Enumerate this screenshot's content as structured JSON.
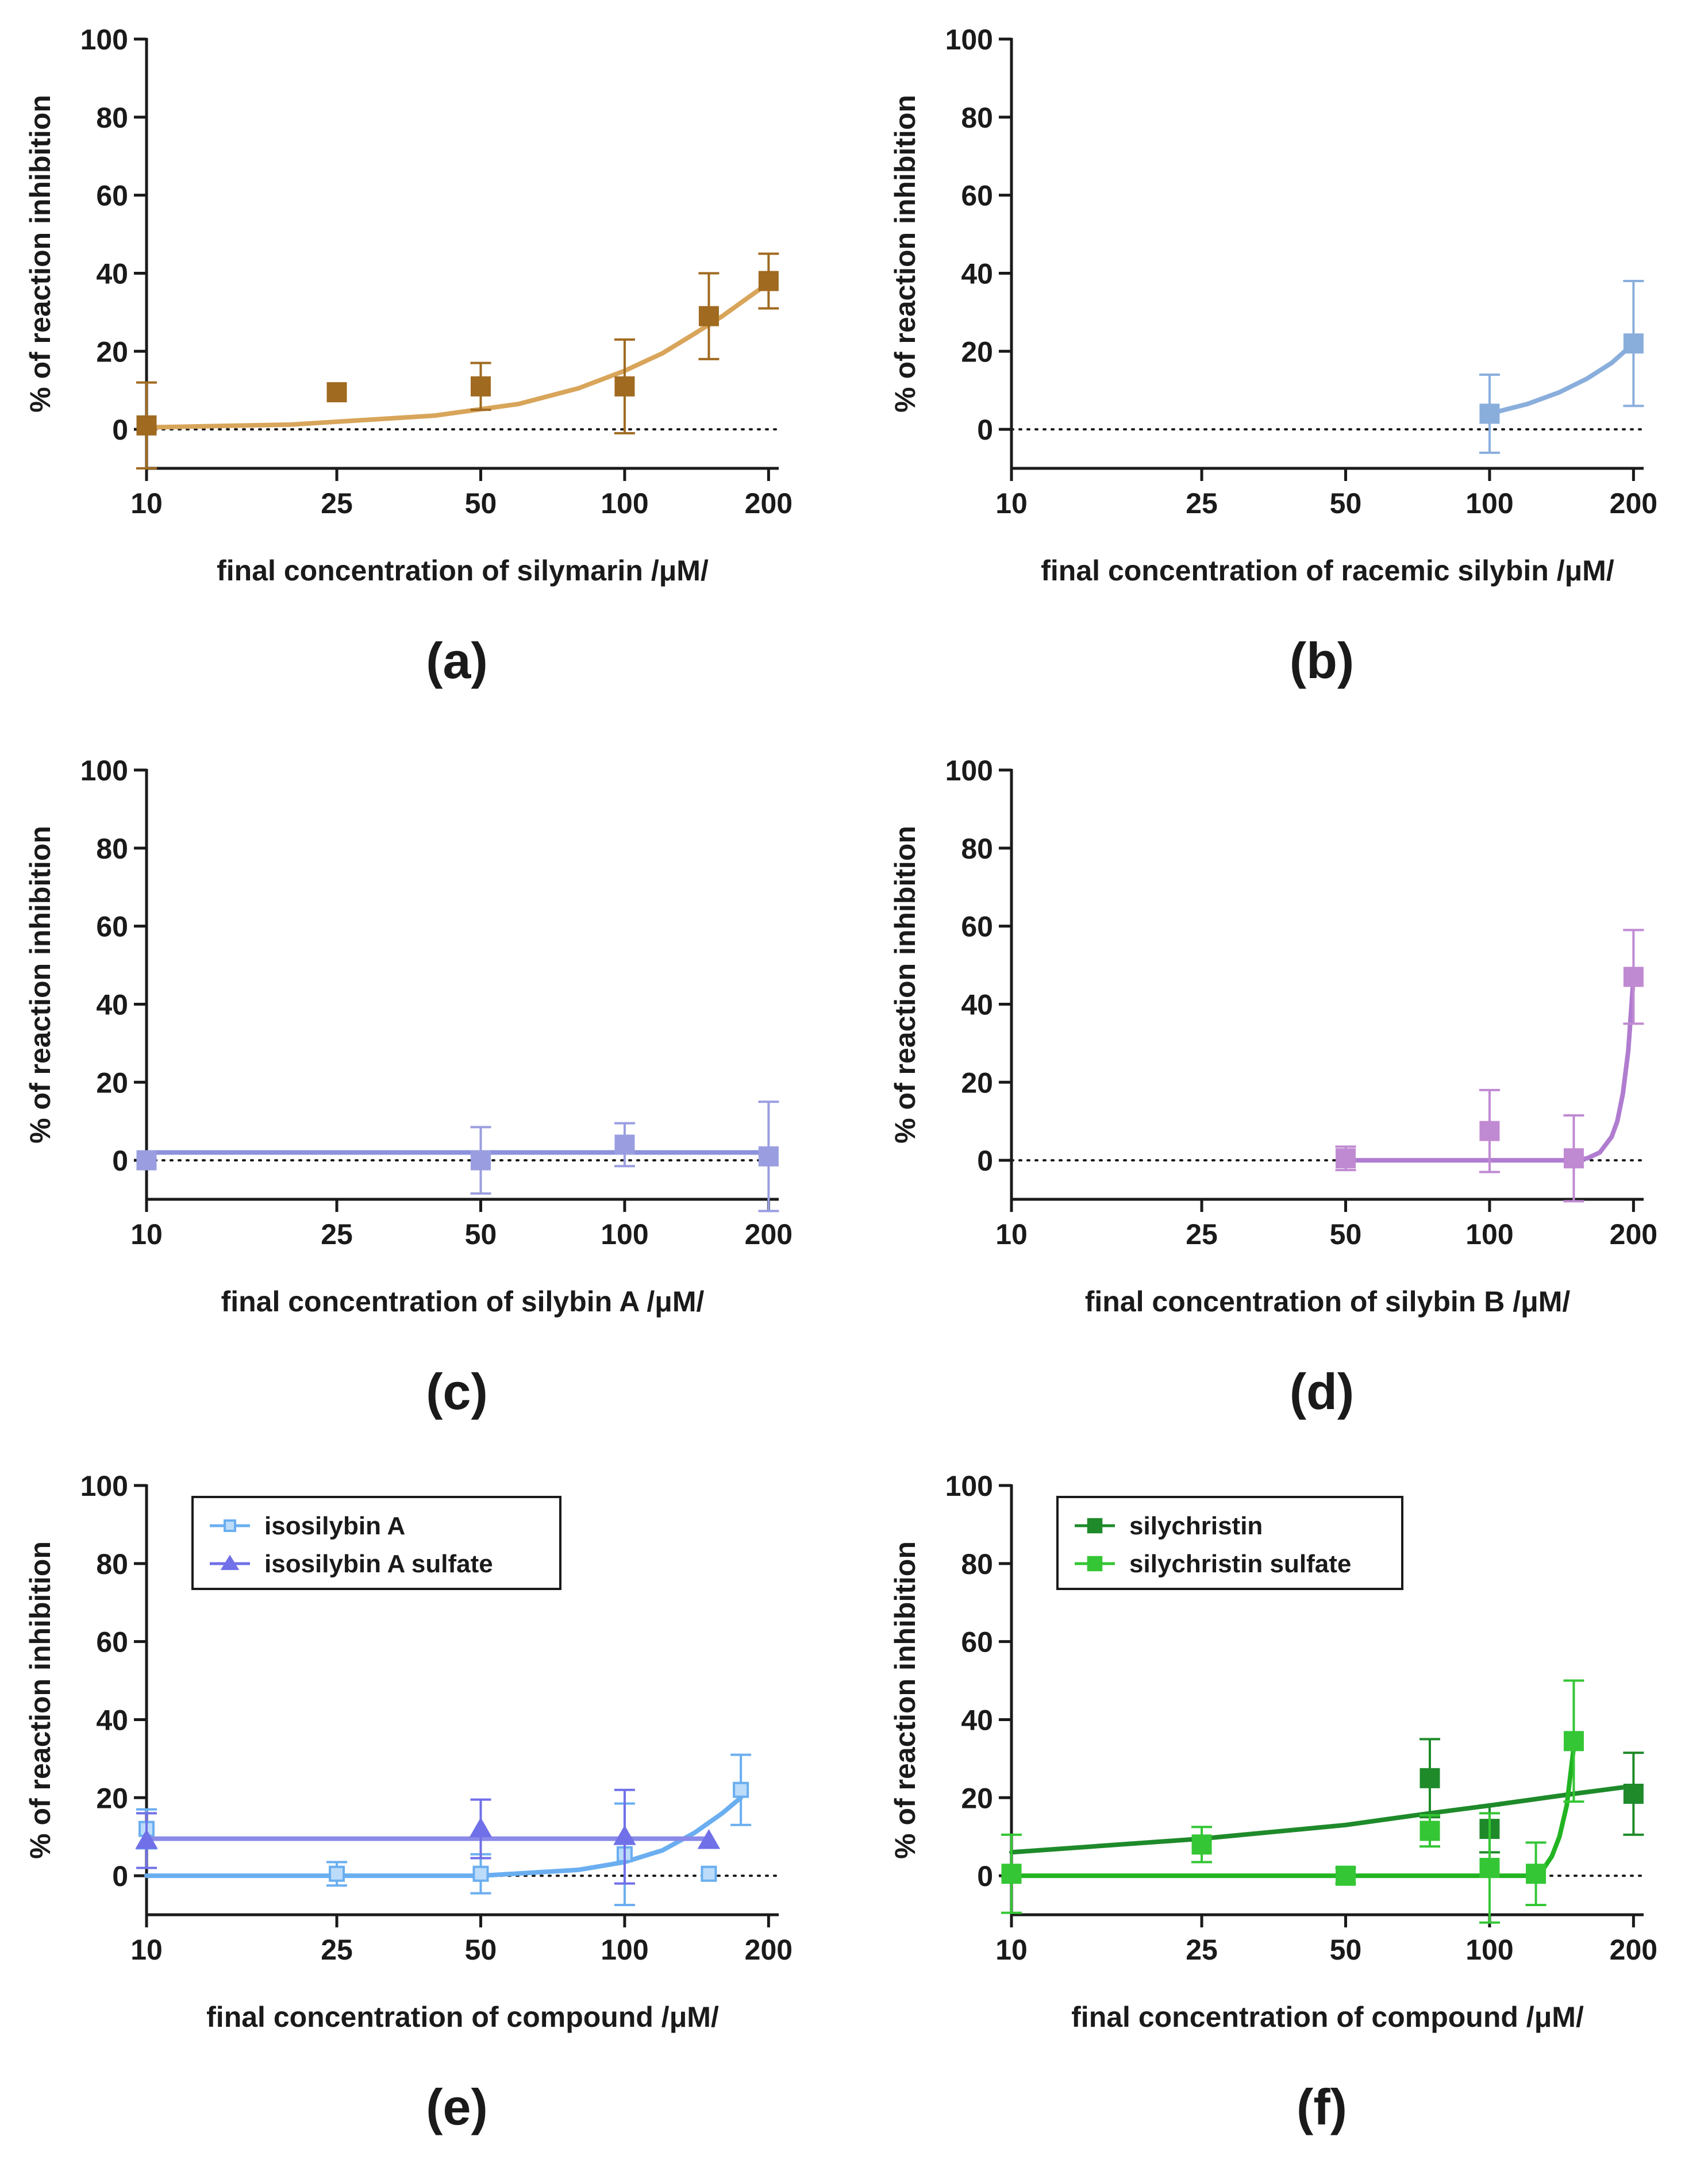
{
  "chart_data": [
    {
      "panel": "(a)",
      "type": "scatter",
      "xlabel": "final concentration of silymarin /μM/",
      "ylabel": "% of reaction inhibition",
      "x_scale": "log",
      "xlim": [
        10,
        210
      ],
      "ylim": [
        -10,
        100
      ],
      "xticks": [
        10,
        25,
        50,
        100,
        200
      ],
      "yticks": [
        0,
        20,
        40,
        60,
        80,
        100
      ],
      "tick_labels_x": [
        "10",
        "25",
        "50",
        "100",
        "200"
      ],
      "tick_labels_y": [
        "0",
        "20",
        "40",
        "60",
        "80",
        "100"
      ],
      "legend": null,
      "series": [
        {
          "name": "silymarin",
          "color": "#a06a20",
          "marker": "square",
          "points": [
            {
              "x": 10,
              "y": 1,
              "err": 11
            },
            {
              "x": 25,
              "y": 9.5,
              "err": 0
            },
            {
              "x": 50,
              "y": 11,
              "err": 6
            },
            {
              "x": 100,
              "y": 11,
              "err": 12
            },
            {
              "x": 150,
              "y": 29,
              "err": 11
            },
            {
              "x": 200,
              "y": 38,
              "err": 7
            }
          ],
          "fit": {
            "color": "#d8a55a",
            "x": [
              10,
              20,
              40,
              60,
              80,
              100,
              120,
              140,
              160,
              180,
              200
            ],
            "y": [
              0.5,
              1.2,
              3.5,
              6.5,
              10.5,
              15,
              19.5,
              24.5,
              29,
              33.5,
              37.5
            ]
          }
        }
      ]
    },
    {
      "panel": "(b)",
      "type": "scatter",
      "xlabel": "final concentration of racemic silybin /μM/",
      "ylabel": "% of reaction inhibition",
      "x_scale": "log",
      "xlim": [
        10,
        210
      ],
      "ylim": [
        -10,
        100
      ],
      "xticks": [
        10,
        25,
        50,
        100,
        200
      ],
      "yticks": [
        0,
        20,
        40,
        60,
        80,
        100
      ],
      "tick_labels_x": [
        "10",
        "25",
        "50",
        "100",
        "200"
      ],
      "tick_labels_y": [
        "0",
        "20",
        "40",
        "60",
        "80",
        "100"
      ],
      "legend": null,
      "series": [
        {
          "name": "racemic silybin",
          "color": "#8aaedc",
          "marker": "square",
          "points": [
            {
              "x": 100,
              "y": 4,
              "err": 10
            },
            {
              "x": 200,
              "y": 22,
              "err": 16
            }
          ],
          "fit": {
            "color": "#8aaedc",
            "x": [
              100,
              120,
              140,
              160,
              180,
              200
            ],
            "y": [
              4,
              6.5,
              9.5,
              13,
              17,
              22
            ]
          }
        }
      ]
    },
    {
      "panel": "(c)",
      "type": "scatter",
      "xlabel": "final concentration of silybin A /μM/",
      "ylabel": "% of reaction inhibition",
      "x_scale": "log",
      "xlim": [
        10,
        210
      ],
      "ylim": [
        -10,
        100
      ],
      "xticks": [
        10,
        25,
        50,
        100,
        200
      ],
      "yticks": [
        0,
        20,
        40,
        60,
        80,
        100
      ],
      "tick_labels_x": [
        "10",
        "25",
        "50",
        "100",
        "200"
      ],
      "tick_labels_y": [
        "0",
        "20",
        "40",
        "60",
        "80",
        "100"
      ],
      "legend": null,
      "series": [
        {
          "name": "silybin A",
          "color": "#9a9ee0",
          "marker": "square",
          "points": [
            {
              "x": 10,
              "y": 0,
              "err": 0
            },
            {
              "x": 50,
              "y": 0,
              "err": 8.5
            },
            {
              "x": 100,
              "y": 4,
              "err": 5.5
            },
            {
              "x": 200,
              "y": 1,
              "err": 14
            }
          ],
          "fit": {
            "color": "#8c92dc",
            "x": [
              10,
              200
            ],
            "y": [
              2,
              2
            ]
          }
        }
      ]
    },
    {
      "panel": "(d)",
      "type": "scatter",
      "xlabel": "final concentration of silybin B /μM/",
      "ylabel": "% of reaction inhibition",
      "x_scale": "log",
      "xlim": [
        10,
        210
      ],
      "ylim": [
        -10,
        100
      ],
      "xticks": [
        10,
        25,
        50,
        100,
        200
      ],
      "yticks": [
        0,
        20,
        40,
        60,
        80,
        100
      ],
      "tick_labels_x": [
        "10",
        "25",
        "50",
        "100",
        "200"
      ],
      "tick_labels_y": [
        "0",
        "20",
        "40",
        "60",
        "80",
        "100"
      ],
      "legend": null,
      "series": [
        {
          "name": "silybin B",
          "color": "#c08ad2",
          "marker": "square",
          "points": [
            {
              "x": 50,
              "y": 0.5,
              "err": 3
            },
            {
              "x": 100,
              "y": 7.5,
              "err": 10.5
            },
            {
              "x": 150,
              "y": 0.5,
              "err": 11
            },
            {
              "x": 200,
              "y": 47,
              "err": 12
            }
          ],
          "fit": {
            "color": "#b07cd0",
            "x": [
              50,
              150,
              160,
              170,
              180,
              185,
              190,
              195,
              200
            ],
            "y": [
              0,
              0,
              0.5,
              2,
              6,
              10,
              17,
              28,
              47
            ]
          }
        }
      ]
    },
    {
      "panel": "(e)",
      "type": "scatter",
      "xlabel": "final concentration of compound /μM/",
      "ylabel": "% of reaction inhibition",
      "x_scale": "log",
      "xlim": [
        10,
        210
      ],
      "ylim": [
        -10,
        100
      ],
      "xticks": [
        10,
        25,
        50,
        100,
        200
      ],
      "yticks": [
        0,
        20,
        40,
        60,
        80,
        100
      ],
      "tick_labels_x": [
        "10",
        "25",
        "50",
        "100",
        "200"
      ],
      "tick_labels_y": [
        "0",
        "20",
        "40",
        "60",
        "80",
        "100"
      ],
      "legend": {
        "position": "top-left",
        "entries": [
          "isosilybin A",
          "isosilybin A sulfate"
        ]
      },
      "series": [
        {
          "name": "isosilybin A",
          "color": "#6aaef0",
          "marker": "open-square",
          "points": [
            {
              "x": 10,
              "y": 12,
              "err": 5
            },
            {
              "x": 25,
              "y": 0.5,
              "err": 3
            },
            {
              "x": 50,
              "y": 0.5,
              "err": 5
            },
            {
              "x": 100,
              "y": 5.5,
              "err": 13
            },
            {
              "x": 150,
              "y": 0.5,
              "err": 0
            },
            {
              "x": 175,
              "y": 22,
              "err": 9
            }
          ],
          "fit": {
            "color": "#6aaef0",
            "x": [
              10,
              50,
              80,
              100,
              120,
              140,
              160,
              175
            ],
            "y": [
              0,
              0,
              1.5,
              3.5,
              6.5,
              11,
              16,
              20
            ]
          }
        },
        {
          "name": "isosilybin A sulfate",
          "color": "#7070e8",
          "marker": "triangle",
          "points": [
            {
              "x": 10,
              "y": 9,
              "err": 7
            },
            {
              "x": 50,
              "y": 12,
              "err": 7.5
            },
            {
              "x": 100,
              "y": 10,
              "err": 12
            },
            {
              "x": 150,
              "y": 9,
              "err": 0
            }
          ],
          "fit": {
            "color": "#8a8ae8",
            "x": [
              10,
              150
            ],
            "y": [
              9.5,
              9.5
            ]
          }
        }
      ]
    },
    {
      "panel": "(f)",
      "type": "scatter",
      "xlabel": "final concentration of compound /μM/",
      "ylabel": "% of reaction inhibition",
      "x_scale": "log",
      "xlim": [
        10,
        210
      ],
      "ylim": [
        -10,
        100
      ],
      "xticks": [
        10,
        25,
        50,
        100,
        200
      ],
      "yticks": [
        0,
        20,
        40,
        60,
        80,
        100
      ],
      "tick_labels_x": [
        "10",
        "25",
        "50",
        "100",
        "200"
      ],
      "tick_labels_y": [
        "0",
        "20",
        "40",
        "60",
        "80",
        "100"
      ],
      "legend": {
        "position": "top-left",
        "entries": [
          "silychristin",
          "silychristin sulfate"
        ]
      },
      "series": [
        {
          "name": "silychristin",
          "color": "#1e8a2a",
          "marker": "square",
          "points": [
            {
              "x": 75,
              "y": 25,
              "err": 10
            },
            {
              "x": 100,
              "y": 12,
              "err": 6
            },
            {
              "x": 200,
              "y": 21,
              "err": 10.5
            }
          ],
          "fit": {
            "color": "#1e8a2a",
            "x": [
              10,
              25,
              50,
              75,
              100,
              150,
              200
            ],
            "y": [
              6,
              9.5,
              13,
              16,
              18,
              21,
              23
            ]
          }
        },
        {
          "name": "silychristin sulfate",
          "color": "#34c634",
          "marker": "square",
          "points": [
            {
              "x": 10,
              "y": 0.5,
              "err": 10
            },
            {
              "x": 25,
              "y": 8,
              "err": 4.5
            },
            {
              "x": 50,
              "y": 0,
              "err": 2
            },
            {
              "x": 75,
              "y": 11.5,
              "err": 4
            },
            {
              "x": 100,
              "y": 2,
              "err": 14
            },
            {
              "x": 125,
              "y": 0.5,
              "err": 8
            },
            {
              "x": 150,
              "y": 34.5,
              "err": 15.5
            }
          ],
          "fit": {
            "color": "#22b422",
            "x": [
              10,
              125,
              130,
              135,
              140,
              145,
              150
            ],
            "y": [
              0,
              0,
              2,
              5,
              10,
              18,
              33
            ]
          }
        }
      ]
    }
  ]
}
